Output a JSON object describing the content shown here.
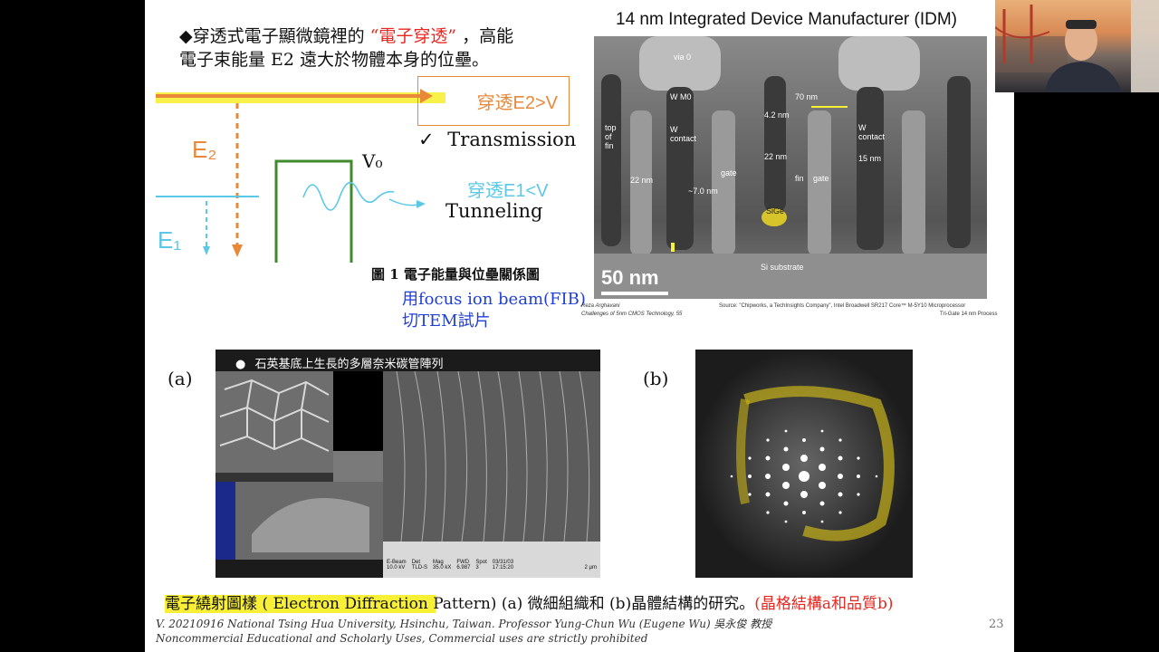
{
  "slide": {
    "bullet_text_1a": "◆穿透式電子顯微鏡裡的",
    "bullet_highlight": "“電子穿透”",
    "bullet_text_1b": "，高能",
    "bullet_text_2": "電子束能量 E2 遠大於物體本身的位壘。",
    "diagram": {
      "e2_label": "E₂",
      "e1_label": "E₁",
      "v0_label": "V₀",
      "annot_e2": "穿透E2>V",
      "annot_e1": "穿透E1<V",
      "transmission": "Transmission",
      "check": "✓",
      "tunneling": "Tunneling"
    },
    "fig1_caption": "圖 1  電子能量與位壘關係圖",
    "fib_line1": "用focus ion beam(FIB)",
    "fib_line2": "切TEM試片",
    "tem": {
      "title": "14 nm Integrated Device Manufacturer (IDM)",
      "labels": {
        "via0": "via 0",
        "wm0": "W M0",
        "wcontact1": "W\ncontact",
        "top_of_fin": "top\nof\nfin",
        "nm22a": "22 nm",
        "nm7": "~7.0 nm",
        "gate1": "gate",
        "nm70": "70 nm",
        "nm42": "4.2 nm",
        "nm22b": "22 nm",
        "fin": "fin",
        "gate2": "gate",
        "wcontact2": "W\ncontact",
        "nm15": "15 nm",
        "sige": "SiGe",
        "si_sub": "Si substrate",
        "scale": "50 nm"
      },
      "credit_left_1": "Reza Arghavani",
      "credit_left_2": "Challenges of 5nm CMOS Technology,  55",
      "credit_right_1": "Source: \"Chipworks, a TechInsights Company\", Intel Broadwell SR217 Core™ M-5Y10 Microprocessor",
      "credit_right_2": "Tri-Gate 14 nm Process"
    },
    "label_a": "(a)",
    "label_b": "(b)",
    "sem_caption": "石英基底上生長的多層奈米碳管陣列",
    "sem_footer": {
      "c1": "E-Beam",
      "c1v": "10.0 kV",
      "c2": "Det",
      "c2v": "TLD-S",
      "c3": "Mag",
      "c3v": "35.0 kX",
      "c4": "FWD",
      "c4v": "6.987",
      "c5": "Spot",
      "c5v": "3",
      "c6": "03/31/03",
      "c6v": "17:15:20",
      "scale": "2 µm"
    },
    "bottom_caption_a": "電子繞射圖樣 ( Electron Diffraction Pattern) (a) 微細組織和 (b)晶體結構的研究。",
    "bottom_caption_b": "(晶格結構a和品質b)",
    "footer_1": "V. 20210916 National Tsing Hua University, Hsinchu, Taiwan. Professor Yung-Chun Wu (Eugene Wu) 吳永俊 教授",
    "footer_2": "Noncommercial Educational and Scholarly Uses, Commercial uses are strictly prohibited",
    "page_number": "23"
  },
  "colors": {
    "highlight_red": "#e8261f",
    "annot_orange": "#e8893a",
    "diagram_cyan": "#5ac8e6",
    "frame_green": "#3f8a2c",
    "fib_blue": "#1f3fd6",
    "caption_red": "#e8261f"
  }
}
